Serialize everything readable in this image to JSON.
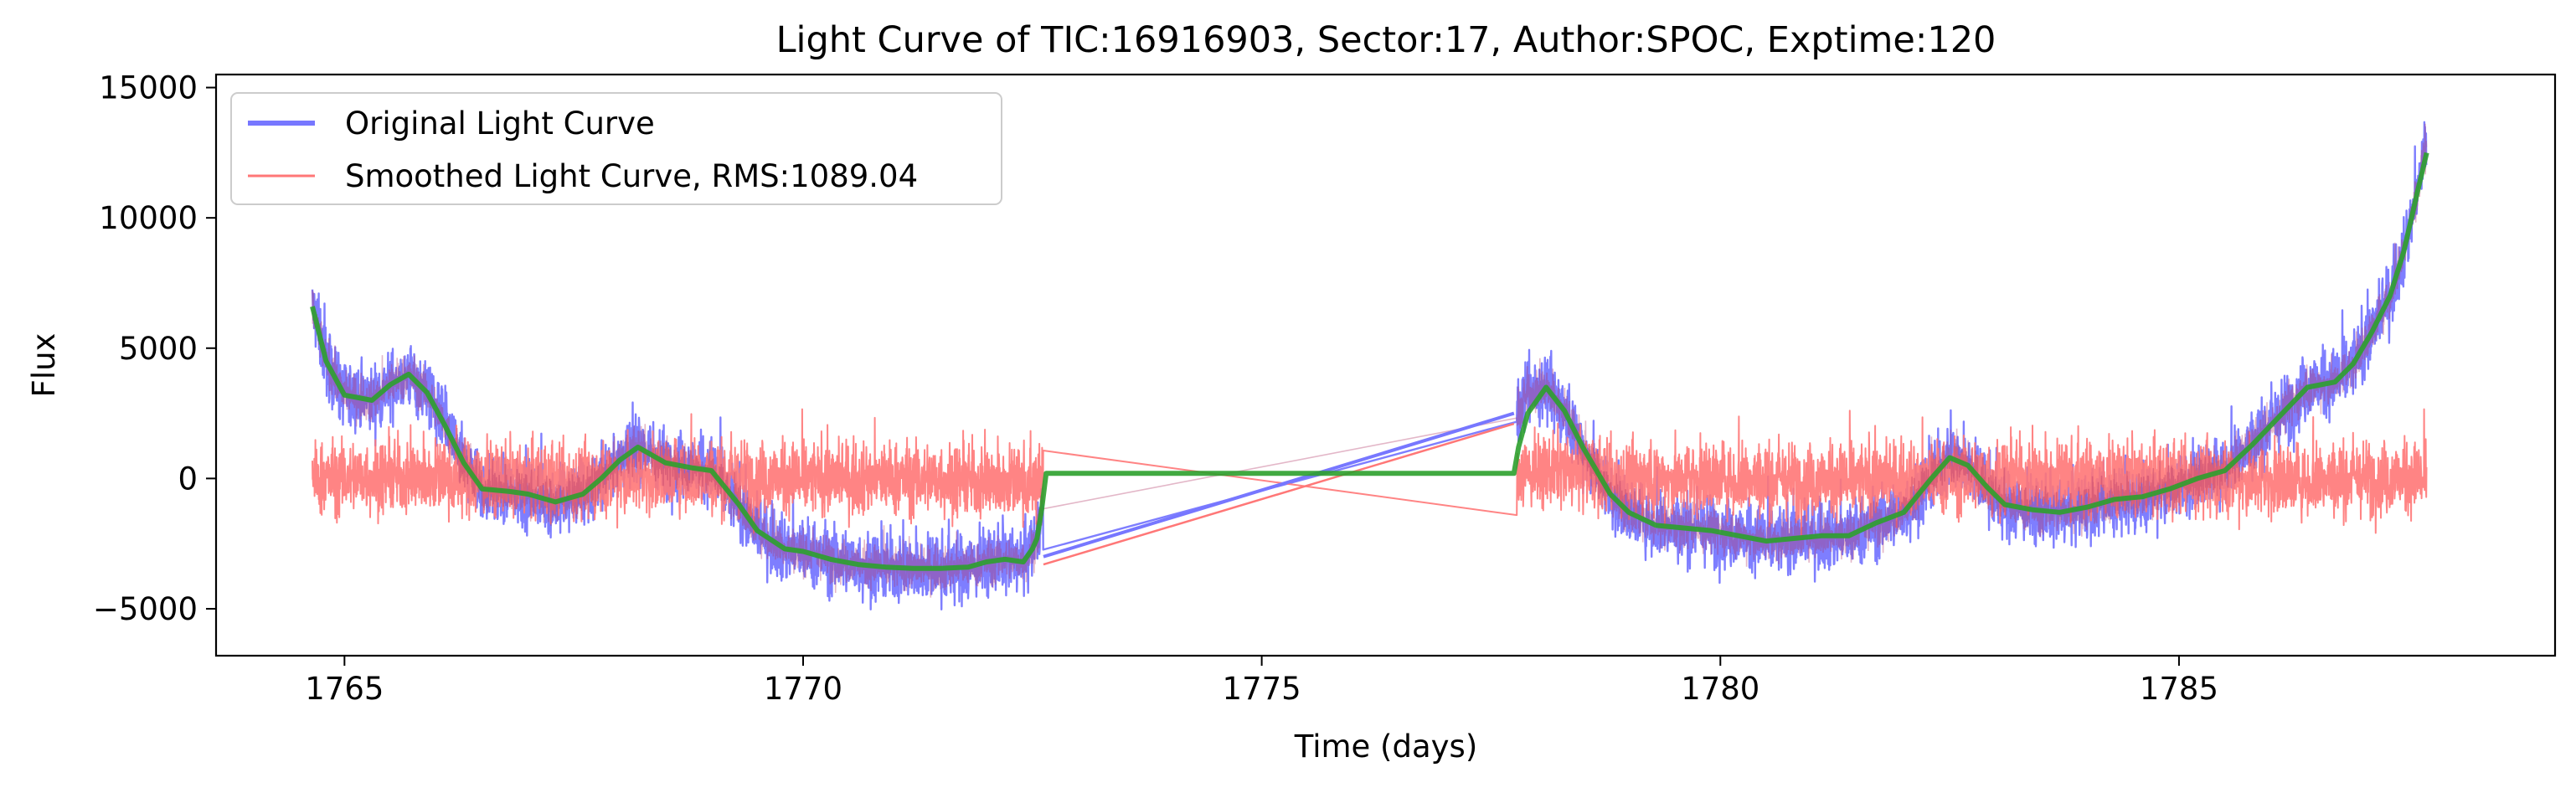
{
  "chart_data": {
    "type": "line",
    "title": "Light Curve of TIC:16916903, Sector:17, Author:SPOC, Exptime:120",
    "xlabel": "Time (days)",
    "ylabel": "Flux",
    "xlim": [
      1763.6,
      1789.1
    ],
    "ylim": [
      -6800,
      15500
    ],
    "xticks": [
      1765,
      1770,
      1775,
      1780,
      1785
    ],
    "xtick_labels": [
      "1765",
      "1770",
      "1775",
      "1780",
      "1785"
    ],
    "yticks": [
      -5000,
      0,
      5000,
      10000,
      15000
    ],
    "ytick_labels": [
      "−5000",
      "0",
      "5000",
      "10000",
      "15000"
    ],
    "grid": false,
    "legend_position": "top-left",
    "series": [
      {
        "name": "Original Light Curve",
        "color": "#7777ff",
        "style": "noisy-band",
        "x": [
          1764.65,
          1764.8,
          1765.0,
          1765.3,
          1765.5,
          1765.7,
          1765.9,
          1766.1,
          1766.3,
          1766.5,
          1766.8,
          1767.0,
          1767.3,
          1767.6,
          1767.8,
          1768.0,
          1768.2,
          1768.5,
          1768.8,
          1769.0,
          1769.3,
          1769.5,
          1769.8,
          1770.0,
          1770.3,
          1770.6,
          1770.9,
          1771.2,
          1771.5,
          1771.8,
          1772.0,
          1772.2,
          1772.4,
          1772.5,
          1772.55,
          1772.6,
          1777.75,
          1777.8,
          1777.9,
          1778.1,
          1778.3,
          1778.5,
          1778.8,
          1779.0,
          1779.3,
          1779.6,
          1779.9,
          1780.2,
          1780.5,
          1780.8,
          1781.1,
          1781.4,
          1781.7,
          1782.0,
          1782.3,
          1782.5,
          1782.7,
          1782.9,
          1783.1,
          1783.4,
          1783.7,
          1784.0,
          1784.3,
          1784.6,
          1784.9,
          1785.2,
          1785.5,
          1785.8,
          1786.1,
          1786.4,
          1786.7,
          1786.9,
          1787.1,
          1787.3,
          1787.45,
          1787.6,
          1787.7
        ],
        "values": [
          6600,
          4500,
          3200,
          3000,
          3600,
          4000,
          3300,
          2000,
          600,
          -400,
          -500,
          -600,
          -900,
          -600,
          0,
          700,
          1200,
          600,
          400,
          300,
          -1000,
          -2000,
          -2700,
          -2800,
          -3100,
          -3300,
          -3400,
          -3450,
          -3450,
          -3400,
          -3200,
          -3100,
          -3200,
          -2700,
          -2300,
          -1200,
          1200,
          2500,
          3300,
          3500,
          2600,
          1200,
          -600,
          -1300,
          -1800,
          -1900,
          -2000,
          -2200,
          -2400,
          -2300,
          -2200,
          -2200,
          -1700,
          -1300,
          0,
          800,
          500,
          -300,
          -1000,
          -1200,
          -1300,
          -1100,
          -800,
          -700,
          -400,
          0,
          300,
          1300,
          2400,
          3500,
          3700,
          4400,
          5600,
          7000,
          8700,
          11000,
          13000
        ]
      },
      {
        "name": "Smoothed Light Curve, RMS:1089.04",
        "color": "#ff7777",
        "style": "noisy-band",
        "x": [
          1764.65,
          1765.5,
          1766.5,
          1767.5,
          1768.5,
          1769.5,
          1770.5,
          1771.5,
          1772.0,
          1772.6,
          1777.75,
          1778.2,
          1779.0,
          1780.0,
          1781.0,
          1782.0,
          1783.0,
          1784.0,
          1785.0,
          1786.0,
          1786.8,
          1787.7
        ],
        "values": [
          0,
          100,
          0,
          -100,
          100,
          0,
          0,
          0,
          -100,
          -200,
          200,
          300,
          0,
          0,
          -100,
          0,
          100,
          0,
          0,
          -100,
          0,
          0
        ]
      },
      {
        "name": "",
        "color": "#2ca02c",
        "style": "smooth",
        "x": [
          1764.65,
          1764.8,
          1765.0,
          1765.3,
          1765.5,
          1765.7,
          1765.9,
          1766.1,
          1766.3,
          1766.5,
          1766.8,
          1767.0,
          1767.3,
          1767.6,
          1767.8,
          1768.0,
          1768.2,
          1768.5,
          1768.8,
          1769.0,
          1769.3,
          1769.5,
          1769.8,
          1770.0,
          1770.3,
          1770.6,
          1770.9,
          1771.2,
          1771.5,
          1771.8,
          1772.0,
          1772.2,
          1772.4,
          1772.5,
          1772.55,
          1772.6,
          1772.65,
          1777.75,
          1777.8,
          1777.9,
          1778.1,
          1778.3,
          1778.5,
          1778.8,
          1779.0,
          1779.3,
          1779.6,
          1779.9,
          1780.2,
          1780.5,
          1780.8,
          1781.1,
          1781.4,
          1781.7,
          1782.0,
          1782.3,
          1782.5,
          1782.7,
          1782.9,
          1783.1,
          1783.4,
          1783.7,
          1784.0,
          1784.3,
          1784.6,
          1784.9,
          1785.2,
          1785.5,
          1785.8,
          1786.1,
          1786.4,
          1786.7,
          1786.9,
          1787.1,
          1787.3,
          1787.45,
          1787.6,
          1787.7
        ],
        "values": [
          6600,
          4500,
          3200,
          3000,
          3600,
          4000,
          3300,
          2000,
          600,
          -400,
          -500,
          -600,
          -900,
          -600,
          0,
          700,
          1200,
          600,
          400,
          300,
          -1000,
          -2000,
          -2700,
          -2800,
          -3100,
          -3300,
          -3400,
          -3450,
          -3450,
          -3400,
          -3200,
          -3100,
          -3200,
          -2700,
          -2300,
          -1200,
          200,
          200,
          1200,
          2500,
          3500,
          2600,
          1200,
          -600,
          -1300,
          -1800,
          -1900,
          -2000,
          -2200,
          -2400,
          -2300,
          -2200,
          -2200,
          -1700,
          -1300,
          0,
          800,
          500,
          -300,
          -1000,
          -1200,
          -1300,
          -1100,
          -800,
          -700,
          -400,
          0,
          300,
          1300,
          2400,
          3500,
          3700,
          4400,
          5600,
          7000,
          8700,
          11000,
          12500
        ]
      }
    ]
  }
}
